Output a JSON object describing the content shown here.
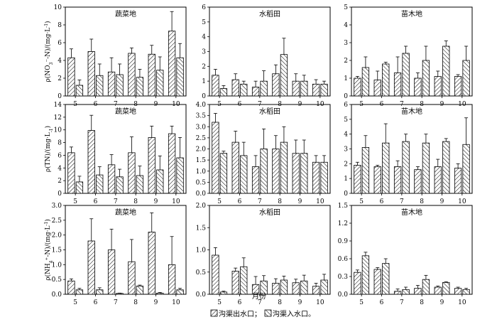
{
  "figure": {
    "xlabel": "月份",
    "legend": {
      "outlet_label": "沟渠出水口；",
      "inlet_label": "沟渠入水口。"
    }
  },
  "chart_data": [
    {
      "type": "bar",
      "id": "no3-veg",
      "title": "蔬菜地",
      "ylabel_parts": [
        "ρ(NO",
        "3",
        "⁻-N)/(mg·L",
        "-1",
        ")"
      ],
      "categories": [
        "5",
        "6",
        "7",
        "8",
        "9",
        "10"
      ],
      "ylim": [
        0,
        10
      ],
      "yticks": [
        0,
        2,
        4,
        6,
        8,
        10
      ],
      "series": [
        {
          "name": "沟渠出水口",
          "values": [
            4.3,
            5.0,
            2.7,
            4.8,
            4.7,
            7.3
          ],
          "errors": [
            1.0,
            1.4,
            1.6,
            0.6,
            1.0,
            2.2
          ]
        },
        {
          "name": "沟渠入水口",
          "values": [
            1.2,
            2.3,
            2.4,
            2.1,
            2.9,
            4.3
          ],
          "errors": [
            0.6,
            1.3,
            1.2,
            0.9,
            1.5,
            1.6
          ]
        }
      ]
    },
    {
      "type": "bar",
      "id": "no3-rice",
      "title": "水稻田",
      "ylabel_parts": [],
      "categories": [
        "5",
        "6",
        "7",
        "8",
        "9",
        "10"
      ],
      "ylim": [
        0,
        6
      ],
      "yticks": [
        0,
        1,
        2,
        3,
        4,
        5,
        6
      ],
      "series": [
        {
          "name": "沟渠出水口",
          "values": [
            1.4,
            1.1,
            0.6,
            1.5,
            1.0,
            0.8
          ],
          "errors": [
            0.4,
            0.4,
            0.4,
            0.6,
            0.5,
            0.3
          ]
        },
        {
          "name": "沟渠入水口",
          "values": [
            0.5,
            0.8,
            1.0,
            2.8,
            1.0,
            0.8
          ],
          "errors": [
            0.2,
            0.2,
            0.7,
            1.1,
            0.4,
            0.2
          ]
        }
      ]
    },
    {
      "type": "bar",
      "id": "no3-nursery",
      "title": "苗木地",
      "ylabel_parts": [],
      "categories": [
        "5",
        "6",
        "7",
        "8",
        "9",
        "10"
      ],
      "ylim": [
        0,
        5
      ],
      "yticks": [
        0,
        1,
        2,
        3,
        4,
        5
      ],
      "series": [
        {
          "name": "沟渠出水口",
          "values": [
            1.0,
            0.9,
            1.3,
            1.0,
            1.1,
            1.1
          ],
          "errors": [
            0.1,
            0.5,
            0.9,
            0.3,
            0.3,
            0.1
          ]
        },
        {
          "name": "沟渠入水口",
          "values": [
            1.6,
            1.8,
            2.4,
            2.0,
            2.8,
            2.0
          ],
          "errors": [
            0.6,
            0.1,
            0.4,
            0.8,
            0.3,
            0.8
          ]
        }
      ]
    },
    {
      "type": "bar",
      "id": "tn-veg",
      "title": "蔬菜地",
      "ylabel_parts": [
        "ρ(TN)/(mg·L",
        "-1",
        ")"
      ],
      "categories": [
        "5",
        "6",
        "7",
        "8",
        "9",
        "10"
      ],
      "ylim": [
        0,
        14
      ],
      "yticks": [
        0,
        2,
        4,
        6,
        8,
        10,
        12,
        14
      ],
      "series": [
        {
          "name": "沟渠出水口",
          "values": [
            6.4,
            9.9,
            4.5,
            6.4,
            8.8,
            9.4
          ],
          "errors": [
            0.9,
            2.4,
            1.6,
            2.5,
            1.8,
            1.2
          ]
        },
        {
          "name": "沟渠入水口",
          "values": [
            1.8,
            2.9,
            2.6,
            2.8,
            3.7,
            5.6
          ],
          "errors": [
            0.9,
            1.3,
            1.2,
            1.5,
            2.2,
            3.2
          ]
        }
      ]
    },
    {
      "type": "bar",
      "id": "tn-rice",
      "title": "水稻田",
      "ylabel_parts": [],
      "categories": [
        "5",
        "6",
        "7",
        "8",
        "9",
        "10"
      ],
      "ylim": [
        0,
        4
      ],
      "yticks": [
        0,
        0.5,
        1,
        1.5,
        2,
        2.5,
        3,
        3.5,
        4
      ],
      "series": [
        {
          "name": "沟渠出水口",
          "values": [
            3.2,
            2.3,
            1.2,
            2.0,
            1.8,
            1.4
          ],
          "errors": [
            0.4,
            0.5,
            0.5,
            0.6,
            0.6,
            0.3
          ]
        },
        {
          "name": "沟渠入水口",
          "values": [
            1.8,
            1.7,
            2.0,
            2.3,
            1.8,
            1.4
          ],
          "errors": [
            0.1,
            0.6,
            0.9,
            0.7,
            0.6,
            0.3
          ]
        }
      ]
    },
    {
      "type": "bar",
      "id": "tn-nursery",
      "title": "苗木地",
      "ylabel_parts": [],
      "categories": [
        "5",
        "6",
        "7",
        "8",
        "9",
        "10"
      ],
      "ylim": [
        0,
        6
      ],
      "yticks": [
        0,
        1,
        2,
        3,
        4,
        5,
        6
      ],
      "series": [
        {
          "name": "沟渠出水口",
          "values": [
            1.9,
            1.8,
            1.8,
            1.6,
            1.8,
            1.7
          ],
          "errors": [
            0.2,
            0.1,
            0.4,
            0.2,
            0.5,
            0.3
          ]
        },
        {
          "name": "沟渠入水口",
          "values": [
            3.1,
            3.4,
            3.5,
            3.4,
            3.5,
            3.3
          ],
          "errors": [
            0.8,
            1.3,
            0.5,
            0.6,
            0.2,
            1.8
          ]
        }
      ]
    },
    {
      "type": "bar",
      "id": "nh4-veg",
      "title": "蔬菜地",
      "ylabel_parts": [
        "ρ(NH",
        "4",
        "⁺-N)/(mg·L",
        "-1",
        ")"
      ],
      "categories": [
        "5",
        "6",
        "7",
        "8",
        "9",
        "10"
      ],
      "ylim": [
        0,
        3.0
      ],
      "yticks": [
        0,
        0.5,
        1.0,
        1.5,
        2.0,
        2.5,
        3.0
      ],
      "series": [
        {
          "name": "沟渠出水口",
          "values": [
            0.45,
            1.8,
            1.5,
            1.1,
            2.1,
            1.0
          ],
          "errors": [
            0.07,
            0.75,
            0.7,
            0.75,
            0.65,
            0.95
          ]
        },
        {
          "name": "沟渠入水口",
          "values": [
            0.15,
            0.15,
            0.03,
            0.28,
            0.04,
            0.15
          ],
          "errors": [
            0.05,
            0.07,
            0.01,
            0.03,
            0.02,
            0.05
          ]
        }
      ]
    },
    {
      "type": "bar",
      "id": "nh4-rice",
      "title": "水稻田",
      "ylabel_parts": [],
      "categories": [
        "5",
        "6",
        "7",
        "8",
        "9",
        "10"
      ],
      "ylim": [
        0,
        2.0
      ],
      "yticks": [
        0,
        0.5,
        1.0,
        1.5,
        2.0
      ],
      "series": [
        {
          "name": "沟渠出水口",
          "values": [
            0.88,
            0.52,
            0.22,
            0.25,
            0.26,
            0.18
          ],
          "errors": [
            0.17,
            0.07,
            0.18,
            0.1,
            0.08,
            0.07
          ]
        },
        {
          "name": "沟渠入水口",
          "values": [
            0.05,
            0.62,
            0.3,
            0.32,
            0.3,
            0.32
          ],
          "errors": [
            0.02,
            0.2,
            0.12,
            0.09,
            0.13,
            0.13
          ]
        }
      ]
    },
    {
      "type": "bar",
      "id": "nh4-nursery",
      "title": "苗木地",
      "ylabel_parts": [],
      "categories": [
        "5",
        "6",
        "7",
        "8",
        "9",
        "10"
      ],
      "ylim": [
        0,
        1.5
      ],
      "yticks": [
        0,
        0.3,
        0.6,
        0.9,
        1.2,
        1.5
      ],
      "series": [
        {
          "name": "沟渠出水口",
          "values": [
            0.37,
            0.42,
            0.05,
            0.1,
            0.12,
            0.1
          ],
          "errors": [
            0.04,
            0.03,
            0.04,
            0.05,
            0.02,
            0.02
          ]
        },
        {
          "name": "沟渠入水口",
          "values": [
            0.65,
            0.52,
            0.08,
            0.25,
            0.2,
            0.08
          ],
          "errors": [
            0.06,
            0.08,
            0.04,
            0.07,
            0.01,
            0.02
          ]
        }
      ]
    }
  ]
}
